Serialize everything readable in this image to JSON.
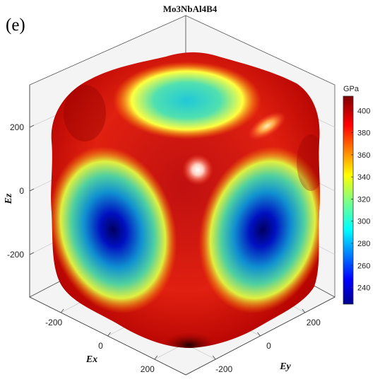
{
  "panel_label": "(e)",
  "chart_data": {
    "type": "heatmap",
    "title": "Mo3NbAl4B4",
    "surface": "3D Young's modulus surface",
    "axes": {
      "x": {
        "label": "Ex",
        "ticks": [
          "-200",
          "0",
          "200"
        ]
      },
      "y": {
        "label": "Ey",
        "ticks": [
          "200",
          "0",
          "-200"
        ]
      },
      "z": {
        "label": "Ez",
        "ticks": [
          "200",
          "0",
          "-200"
        ]
      }
    },
    "colorbar": {
      "unit": "GPa",
      "range": [
        225,
        413
      ],
      "ticks": [
        240,
        260,
        280,
        300,
        320,
        340,
        360,
        380,
        400
      ],
      "colormap": "jet"
    },
    "features": [
      {
        "region": "top face",
        "value": 300
      },
      {
        "region": "left face",
        "value": 235
      },
      {
        "region": "right face",
        "value": 235
      },
      {
        "region": "front edge",
        "value": 405
      }
    ],
    "grid": true
  }
}
